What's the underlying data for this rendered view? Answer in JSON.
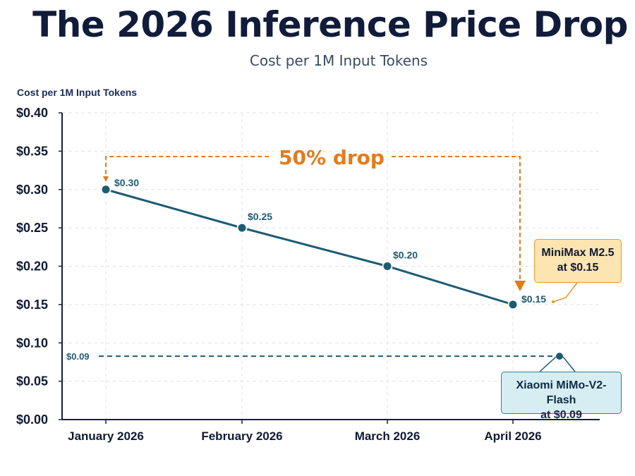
{
  "header": {
    "title": "The 2026 Inference Price Drop",
    "subtitle": "Cost per 1M Input Tokens"
  },
  "chart_data": {
    "type": "line",
    "ylabel": "Cost per 1M Input Tokens",
    "categories": [
      "January 2026",
      "February 2026",
      "March 2026",
      "April 2026"
    ],
    "series": [
      {
        "values": [
          0.3,
          0.25,
          0.2,
          0.15
        ],
        "labels": [
          "$0.30",
          "$0.25",
          "$0.20",
          "$0.15"
        ],
        "color": "#1c5b73"
      }
    ],
    "ylim": [
      0,
      0.4
    ],
    "yticks": [
      0.0,
      0.05,
      0.1,
      0.15,
      0.2,
      0.25,
      0.3,
      0.35,
      0.4
    ],
    "ytick_labels": [
      "$0.00",
      "$0.05",
      "$0.10",
      "$0.15",
      "$0.20",
      "$0.25",
      "$0.30",
      "$0.35",
      "$0.40"
    ],
    "grid": true,
    "reference_line": {
      "value": 0.09,
      "label": "$0.09",
      "color": "#1c5b73",
      "style": "dashed"
    },
    "annotations": {
      "drop": {
        "text": "50% drop",
        "color": "#e57a1c"
      },
      "minimax": {
        "line1": "MiniMax M2.5",
        "line2": "at $0.15"
      },
      "xiaomi": {
        "line1": "Xiaomi MiMo-V2-Flash",
        "line2": "at $0.09"
      }
    }
  }
}
